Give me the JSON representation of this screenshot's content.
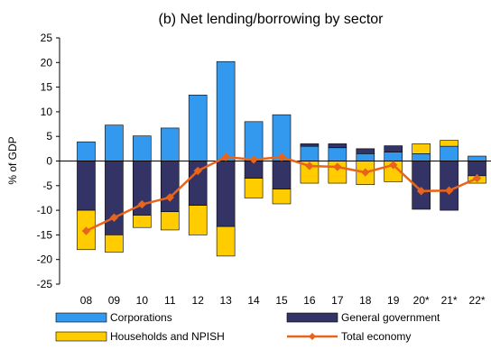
{
  "chart_data": {
    "type": "bar",
    "title": "(b) Net lending/borrowing by sector",
    "xlabel": "",
    "ylabel": "% of GDP",
    "ylim": [
      -25,
      25
    ],
    "yticks": [
      25,
      20,
      15,
      10,
      5,
      0,
      -5,
      -10,
      -15,
      -20,
      -25
    ],
    "categories": [
      "08",
      "09",
      "10",
      "11",
      "12",
      "13",
      "14",
      "15",
      "16",
      "17",
      "18",
      "19",
      "20*",
      "21*",
      "22*"
    ],
    "grid": false,
    "legend_position": "bottom",
    "series": [
      {
        "name": "Corporations",
        "type": "stacked-bar",
        "color": "#3399ee",
        "values": [
          3.9,
          7.3,
          5.1,
          6.7,
          13.4,
          20.2,
          8.0,
          9.4,
          3.0,
          2.7,
          1.5,
          1.8,
          1.5,
          3.0,
          1.0
        ]
      },
      {
        "name": "General government",
        "type": "stacked-bar",
        "color": "#333366",
        "values": [
          -10.0,
          -15.0,
          -11.0,
          -10.3,
          -9.0,
          -13.3,
          -3.5,
          -5.7,
          0.5,
          0.8,
          1.0,
          1.3,
          -9.8,
          -10.0,
          -3.0
        ]
      },
      {
        "name": "Households and NPISH",
        "type": "stacked-bar",
        "color": "#ffcc00",
        "values": [
          -8.0,
          -3.5,
          -2.5,
          -3.7,
          -6.0,
          -6.0,
          -4.0,
          -3.0,
          -4.5,
          -4.5,
          -4.8,
          -4.2,
          2.0,
          1.2,
          -1.5
        ]
      },
      {
        "name": "Total economy",
        "type": "line",
        "color": "#e8641b",
        "values": [
          -14.2,
          -11.5,
          -8.8,
          -7.4,
          -2.0,
          0.8,
          0.3,
          0.8,
          -1.0,
          -1.2,
          -2.3,
          -0.8,
          -6.1,
          -6.0,
          -3.5
        ]
      }
    ]
  }
}
